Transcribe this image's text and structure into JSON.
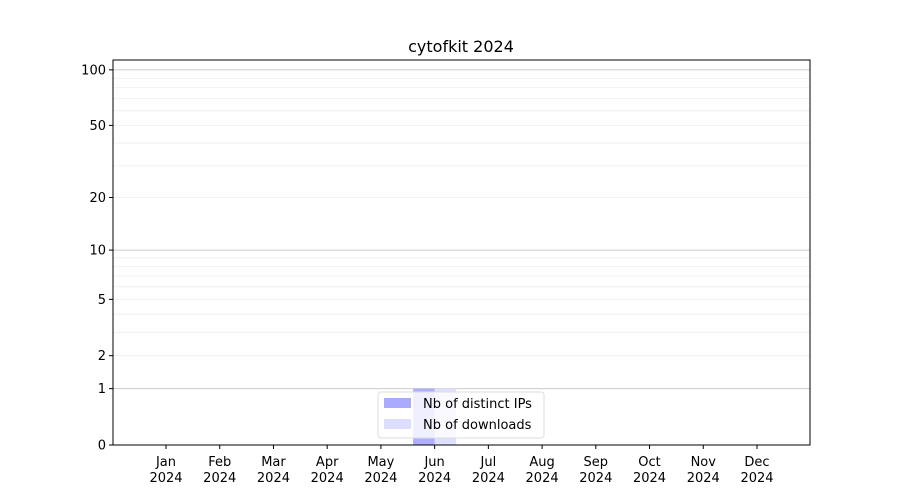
{
  "chart_data": {
    "type": "bar",
    "title": "cytofkit 2024",
    "xlabel": "",
    "ylabel": "",
    "y_scale": "log(1+y)",
    "ylim": [
      0,
      113
    ],
    "y_ticks": [
      0,
      1,
      2,
      5,
      10,
      20,
      50,
      100
    ],
    "y_tick_labels": [
      "0",
      "1",
      "2",
      "5",
      "10",
      "20",
      "50",
      "100"
    ],
    "grid": true,
    "legend_position": "lower center",
    "categories": [
      "Jan\n2024",
      "Feb\n2024",
      "Mar\n2024",
      "Apr\n2024",
      "May\n2024",
      "Jun\n2024",
      "Jul\n2024",
      "Aug\n2024",
      "Sep\n2024",
      "Oct\n2024",
      "Nov\n2024",
      "Dec\n2024"
    ],
    "series": [
      {
        "name": "Nb of distinct IPs",
        "color": "#aaaaff",
        "values": [
          0,
          0,
          0,
          0,
          0,
          1,
          0,
          0,
          0,
          0,
          0,
          0
        ]
      },
      {
        "name": "Nb of downloads",
        "color": "#ddddff",
        "values": [
          0,
          0,
          0,
          0,
          0,
          1,
          0,
          0,
          0,
          0,
          0,
          0
        ]
      }
    ]
  }
}
